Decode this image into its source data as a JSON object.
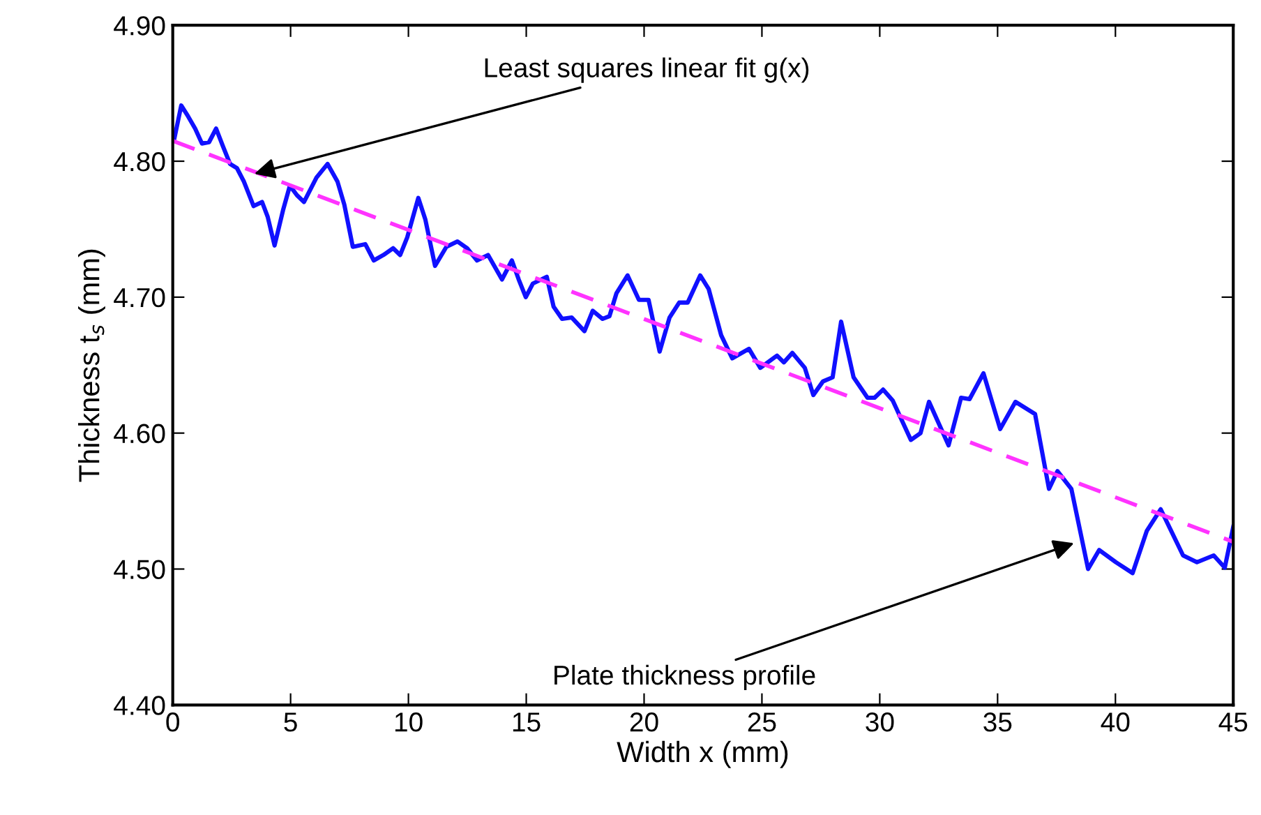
{
  "chart_data": {
    "type": "line",
    "xlabel": "Width x (mm)",
    "ylabel": "Thickness t$_{s}$ (mm)",
    "xlim": [
      0,
      45
    ],
    "ylim": [
      4.4,
      4.9
    ],
    "xticks": [
      0,
      5,
      10,
      15,
      20,
      25,
      30,
      35,
      40,
      45
    ],
    "yticks": [
      {
        "value": 4.4,
        "label": "4.40"
      },
      {
        "value": 4.5,
        "label": "4.50"
      },
      {
        "value": 4.6,
        "label": "4.60"
      },
      {
        "value": 4.7,
        "label": "4.70"
      },
      {
        "value": 4.8,
        "label": "4.80"
      },
      {
        "value": 4.9,
        "label": "4.90"
      }
    ],
    "grid": false,
    "legend": false,
    "marker": "none",
    "series": [
      {
        "color": "#1010ff",
        "line_style": "solid",
        "x": [
          0.06,
          0.36,
          0.65,
          0.95,
          1.24,
          1.54,
          1.84,
          2.13,
          2.43,
          2.72,
          3.02,
          3.43,
          3.79,
          4.03,
          4.32,
          4.68,
          4.97,
          5.27,
          5.57,
          6.1,
          6.57,
          6.99,
          7.28,
          7.64,
          8.17,
          8.53,
          8.94,
          9.35,
          9.65,
          9.95,
          10.42,
          10.72,
          11.13,
          11.61,
          12.08,
          12.49,
          12.91,
          13.38,
          13.97,
          14.39,
          14.68,
          14.98,
          15.28,
          15.87,
          16.16,
          16.52,
          16.93,
          17.47,
          17.82,
          18.24,
          18.53,
          18.83,
          19.3,
          19.78,
          20.19,
          20.66,
          21.08,
          21.49,
          21.85,
          22.38,
          22.74,
          23.27,
          23.74,
          24.45,
          24.93,
          25.64,
          25.93,
          26.29,
          26.82,
          27.18,
          27.59,
          28.0,
          28.36,
          28.89,
          29.48,
          29.78,
          30.14,
          30.55,
          31.32,
          31.73,
          32.09,
          32.92,
          33.45,
          33.81,
          34.4,
          35.11,
          35.76,
          36.59,
          37.18,
          37.54,
          38.13,
          38.84,
          39.31,
          40.02,
          40.73,
          41.33,
          41.92,
          42.87,
          43.46,
          44.17,
          44.64,
          45.0
        ],
        "values": [
          4.816,
          4.841,
          4.833,
          4.824,
          4.813,
          4.814,
          4.824,
          4.811,
          4.798,
          4.795,
          4.785,
          4.767,
          4.77,
          4.759,
          4.738,
          4.764,
          4.782,
          4.775,
          4.77,
          4.788,
          4.798,
          4.785,
          4.768,
          4.737,
          4.739,
          4.727,
          4.731,
          4.736,
          4.731,
          4.744,
          4.773,
          4.757,
          4.723,
          4.737,
          4.741,
          4.736,
          4.727,
          4.731,
          4.713,
          4.727,
          4.713,
          4.7,
          4.71,
          4.715,
          4.693,
          4.684,
          4.685,
          4.675,
          4.69,
          4.684,
          4.686,
          4.703,
          4.716,
          4.698,
          4.698,
          4.66,
          4.685,
          4.696,
          4.696,
          4.716,
          4.706,
          4.672,
          4.655,
          4.662,
          4.648,
          4.657,
          4.652,
          4.659,
          4.648,
          4.628,
          4.638,
          4.641,
          4.682,
          4.641,
          4.626,
          4.626,
          4.632,
          4.624,
          4.595,
          4.6,
          4.623,
          4.591,
          4.626,
          4.625,
          4.644,
          4.603,
          4.623,
          4.614,
          4.559,
          4.572,
          4.559,
          4.5,
          4.514,
          4.505,
          4.497,
          4.528,
          4.544,
          4.51,
          4.505,
          4.51,
          4.501,
          4.531
        ]
      },
      {
        "color": "#ff33ff",
        "line_style": "dashed",
        "x": [
          0,
          45
        ],
        "values": [
          4.815,
          4.52
        ]
      }
    ],
    "annotations": [
      {
        "text": "Least squares linear fit g(x)",
        "x": 3.3,
        "y": 4.79
      },
      {
        "text": "Plate thickness profile",
        "x": 38.4,
        "y": 4.52
      }
    ]
  }
}
